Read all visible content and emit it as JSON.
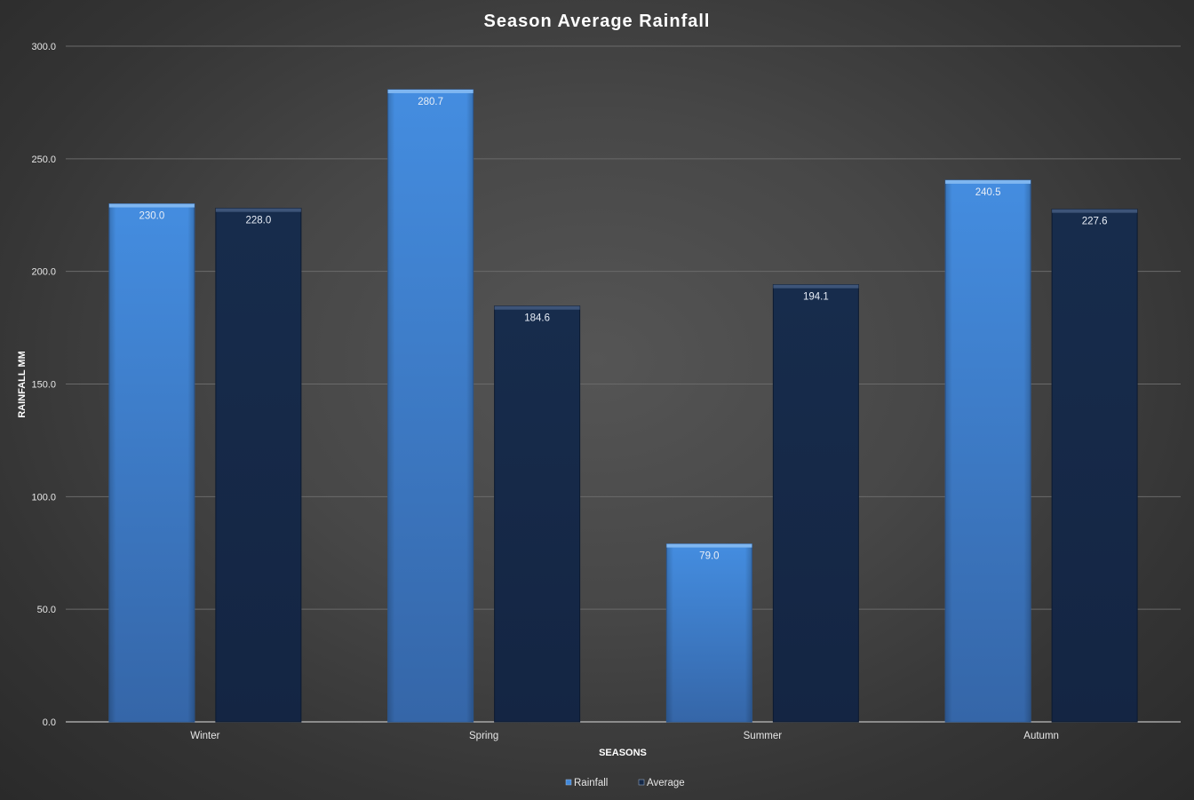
{
  "chart_data": {
    "type": "bar",
    "title": "Season Average Rainfall",
    "xlabel": "SEASONS",
    "ylabel": "RAINFALL MM",
    "categories": [
      "Winter",
      "Spring",
      "Summer",
      "Autumn"
    ],
    "series": [
      {
        "name": "Rainfall",
        "values": [
          230.0,
          280.7,
          79.0,
          240.5
        ],
        "color": "#4189db",
        "data_labels": [
          "230.0",
          "280.7",
          "79.0",
          "240.5"
        ]
      },
      {
        "name": "Average",
        "values": [
          228.0,
          184.6,
          194.1,
          227.6
        ],
        "color": "#152846",
        "data_labels": [
          "228.0",
          "184.6",
          "194.1",
          "227.6"
        ]
      }
    ],
    "ylim": [
      0,
      300
    ],
    "yticks": [
      0,
      50,
      100,
      150,
      200,
      250,
      300
    ],
    "ytick_labels": [
      "0.0",
      "50.0",
      "100.0",
      "150.0",
      "200.0",
      "250.0",
      "300.0"
    ],
    "grid": true,
    "legend_position": "bottom"
  }
}
